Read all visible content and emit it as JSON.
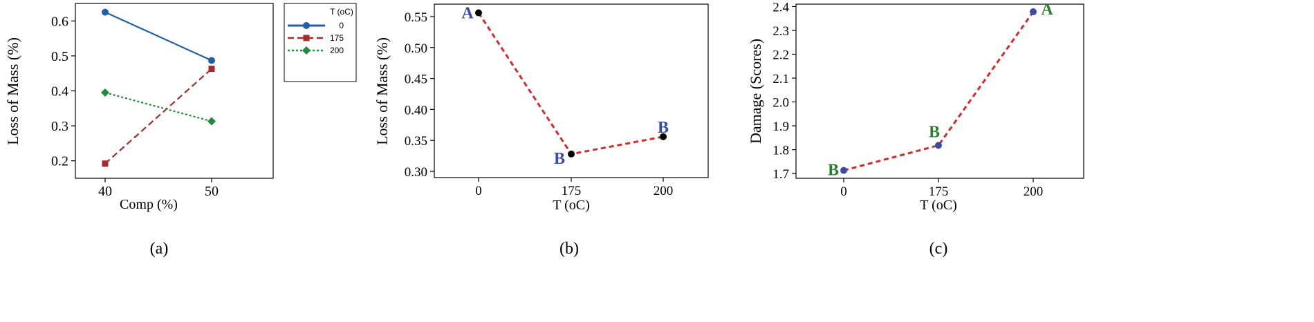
{
  "colors": {
    "blue": "#1f5fa8",
    "red": "#a52a2a",
    "green": "#1e8c3a",
    "dash_red": "#d42a2a",
    "letter_blue": "#3a4aa8",
    "letter_green": "#2e7d32",
    "black": "#000000"
  },
  "chart_data": [
    {
      "type": "line",
      "caption": "(a)",
      "xlabel": "Comp (%)",
      "ylabel": "Loss of Mass (%)",
      "x": [
        40,
        50
      ],
      "x_ticks": [
        "40",
        "50"
      ],
      "ylim": [
        0.15,
        0.65
      ],
      "y_ticks": [
        "0.2",
        "0.3",
        "0.4",
        "0.5",
        "0.6"
      ],
      "y_tick_values": [
        0.2,
        0.3,
        0.4,
        0.5,
        0.6
      ],
      "legend": {
        "title": "T (oC)",
        "placement": "outside-right"
      },
      "series": [
        {
          "name": "0",
          "values": [
            0.625,
            0.487
          ],
          "style": "solid",
          "marker": "circle",
          "color": "#1f5fa8"
        },
        {
          "name": "175",
          "values": [
            0.192,
            0.463
          ],
          "style": "dashed",
          "marker": "square",
          "color": "#a52a2a"
        },
        {
          "name": "200",
          "values": [
            0.395,
            0.313
          ],
          "style": "dotted",
          "marker": "diamond",
          "color": "#1e8c3a"
        }
      ]
    },
    {
      "type": "line",
      "caption": "(b)",
      "xlabel": "T (oC)",
      "ylabel": "Loss of Mass (%)",
      "categories": [
        "0",
        "175",
        "200"
      ],
      "values": [
        0.556,
        0.328,
        0.356
      ],
      "letters": [
        "A",
        "B",
        "B"
      ],
      "ylim": [
        0.29,
        0.57
      ],
      "y_ticks": [
        "0.30",
        "0.35",
        "0.40",
        "0.45",
        "0.50",
        "0.55"
      ],
      "y_tick_values": [
        0.3,
        0.35,
        0.4,
        0.45,
        0.5,
        0.55
      ]
    },
    {
      "type": "line",
      "caption": "(c)",
      "xlabel": "T (oC)",
      "ylabel": "Damage (Scores)",
      "categories": [
        "0",
        "175",
        "200"
      ],
      "values": [
        1.713,
        1.818,
        2.378
      ],
      "letters": [
        "B",
        "B",
        "A"
      ],
      "ylim": [
        1.68,
        2.41
      ],
      "y_ticks": [
        "1.7",
        "1.8",
        "1.9",
        "2.0",
        "2.1",
        "2.2",
        "2.3",
        "2.4"
      ],
      "y_tick_values": [
        1.7,
        1.8,
        1.9,
        2.0,
        2.1,
        2.2,
        2.3,
        2.4
      ]
    }
  ]
}
